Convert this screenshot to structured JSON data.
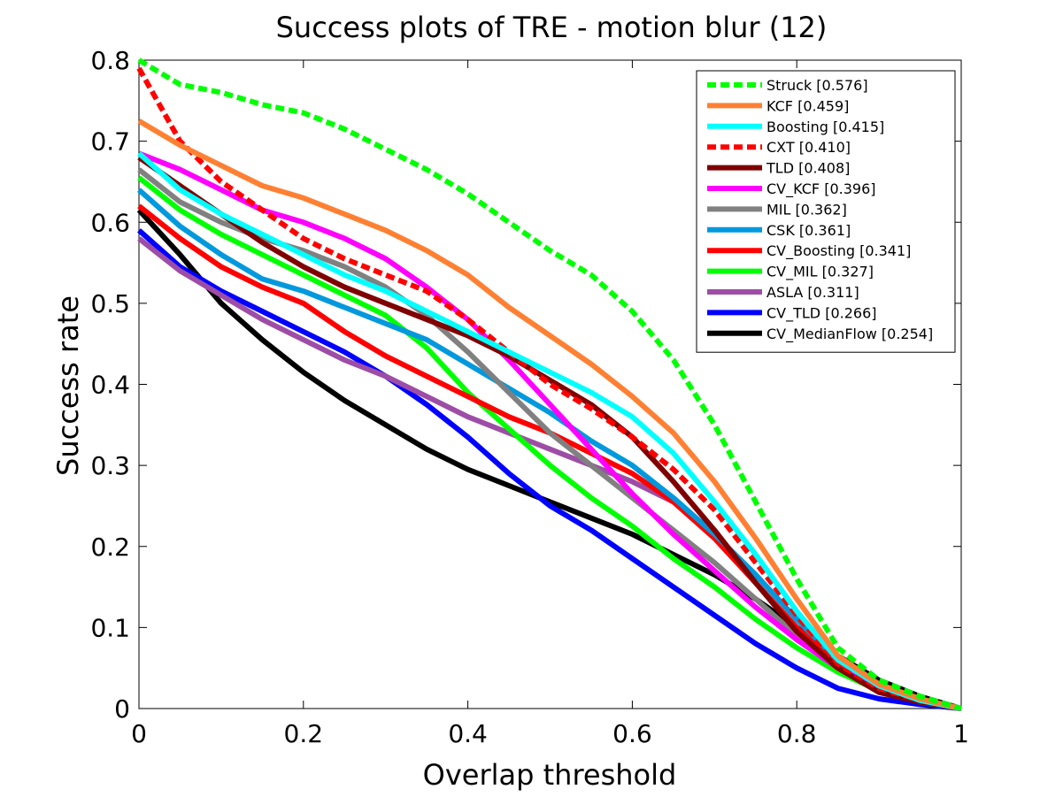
{
  "chart_data": {
    "type": "line",
    "title": "Success plots of TRE - motion blur (12)",
    "xlabel": "Overlap threshold",
    "ylabel": "Success rate",
    "xlim": [
      0,
      1
    ],
    "ylim": [
      0,
      0.8
    ],
    "xticks": [
      "0",
      "0.2",
      "0.4",
      "0.6",
      "0.8",
      "1"
    ],
    "yticks": [
      "0",
      "0.1",
      "0.2",
      "0.3",
      "0.4",
      "0.5",
      "0.6",
      "0.7",
      "0.8"
    ],
    "legend_position": "top-right",
    "x": [
      0,
      0.05,
      0.1,
      0.15,
      0.2,
      0.25,
      0.3,
      0.35,
      0.4,
      0.45,
      0.5,
      0.55,
      0.6,
      0.65,
      0.7,
      0.75,
      0.8,
      0.85,
      0.9,
      0.95,
      1.0
    ],
    "series": [
      {
        "name": "Struck [0.576]",
        "color": "#00ff00",
        "dashed": true,
        "values": [
          0.8,
          0.77,
          0.76,
          0.745,
          0.735,
          0.715,
          0.69,
          0.665,
          0.635,
          0.6,
          0.565,
          0.535,
          0.49,
          0.43,
          0.35,
          0.255,
          0.16,
          0.075,
          0.035,
          0.015,
          0.0
        ]
      },
      {
        "name": "KCF [0.459]",
        "color": "#ff8033",
        "values": [
          0.725,
          0.695,
          0.67,
          0.645,
          0.63,
          0.61,
          0.59,
          0.565,
          0.535,
          0.495,
          0.46,
          0.425,
          0.385,
          0.34,
          0.28,
          0.21,
          0.135,
          0.065,
          0.03,
          0.012,
          0.0
        ]
      },
      {
        "name": "Boosting [0.415]",
        "color": "#00ffff",
        "values": [
          0.685,
          0.64,
          0.61,
          0.585,
          0.56,
          0.535,
          0.515,
          0.49,
          0.465,
          0.44,
          0.415,
          0.39,
          0.36,
          0.315,
          0.255,
          0.19,
          0.12,
          0.06,
          0.028,
          0.01,
          0.0
        ]
      },
      {
        "name": "CXT [0.410]",
        "color": "#ff0000",
        "dashed": true,
        "values": [
          0.79,
          0.7,
          0.65,
          0.615,
          0.58,
          0.555,
          0.535,
          0.515,
          0.48,
          0.44,
          0.4,
          0.37,
          0.335,
          0.295,
          0.245,
          0.18,
          0.115,
          0.055,
          0.025,
          0.01,
          0.0
        ]
      },
      {
        "name": "TLD [0.408]",
        "color": "#800000",
        "values": [
          0.68,
          0.645,
          0.61,
          0.575,
          0.545,
          0.52,
          0.5,
          0.48,
          0.46,
          0.435,
          0.405,
          0.375,
          0.335,
          0.28,
          0.22,
          0.155,
          0.095,
          0.05,
          0.02,
          0.008,
          0.0
        ]
      },
      {
        "name": "CV_KCF [0.396]",
        "color": "#ff00ff",
        "values": [
          0.685,
          0.665,
          0.64,
          0.615,
          0.6,
          0.58,
          0.555,
          0.52,
          0.48,
          0.43,
          0.375,
          0.32,
          0.265,
          0.215,
          0.17,
          0.125,
          0.085,
          0.05,
          0.025,
          0.01,
          0.0
        ]
      },
      {
        "name": "MIL [0.362]",
        "color": "#808080",
        "values": [
          0.665,
          0.625,
          0.6,
          0.58,
          0.565,
          0.545,
          0.52,
          0.485,
          0.44,
          0.39,
          0.34,
          0.3,
          0.26,
          0.22,
          0.18,
          0.135,
          0.09,
          0.05,
          0.022,
          0.008,
          0.0
        ]
      },
      {
        "name": "CSK [0.361]",
        "color": "#0099dd",
        "values": [
          0.64,
          0.595,
          0.56,
          0.53,
          0.515,
          0.495,
          0.475,
          0.455,
          0.425,
          0.395,
          0.365,
          0.33,
          0.3,
          0.26,
          0.215,
          0.165,
          0.11,
          0.06,
          0.028,
          0.01,
          0.0
        ]
      },
      {
        "name": "CV_Boosting [0.341]",
        "color": "#ff0000",
        "values": [
          0.62,
          0.58,
          0.545,
          0.52,
          0.5,
          0.465,
          0.435,
          0.41,
          0.385,
          0.36,
          0.34,
          0.315,
          0.29,
          0.255,
          0.21,
          0.155,
          0.1,
          0.055,
          0.025,
          0.01,
          0.0
        ]
      },
      {
        "name": "CV_MIL [0.327]",
        "color": "#00ff00",
        "values": [
          0.655,
          0.615,
          0.585,
          0.56,
          0.535,
          0.51,
          0.485,
          0.445,
          0.39,
          0.345,
          0.3,
          0.26,
          0.225,
          0.185,
          0.15,
          0.11,
          0.075,
          0.045,
          0.022,
          0.008,
          0.0
        ]
      },
      {
        "name": "ASLA [0.311]",
        "color": "#9d4da6",
        "values": [
          0.58,
          0.54,
          0.51,
          0.48,
          0.455,
          0.43,
          0.41,
          0.385,
          0.36,
          0.34,
          0.32,
          0.3,
          0.28,
          0.255,
          0.215,
          0.165,
          0.11,
          0.06,
          0.028,
          0.01,
          0.0
        ]
      },
      {
        "name": "CV_TLD [0.266]",
        "color": "#0000ff",
        "values": [
          0.59,
          0.545,
          0.515,
          0.49,
          0.465,
          0.44,
          0.41,
          0.375,
          0.335,
          0.29,
          0.25,
          0.22,
          0.185,
          0.15,
          0.115,
          0.08,
          0.05,
          0.025,
          0.012,
          0.005,
          0.0
        ]
      },
      {
        "name": "CV_MedianFlow [0.254]",
        "color": "#000000",
        "values": [
          0.615,
          0.56,
          0.5,
          0.455,
          0.415,
          0.38,
          0.35,
          0.32,
          0.295,
          0.275,
          0.255,
          0.235,
          0.215,
          0.19,
          0.165,
          0.135,
          0.1,
          0.065,
          0.035,
          0.015,
          0.0
        ]
      }
    ]
  }
}
